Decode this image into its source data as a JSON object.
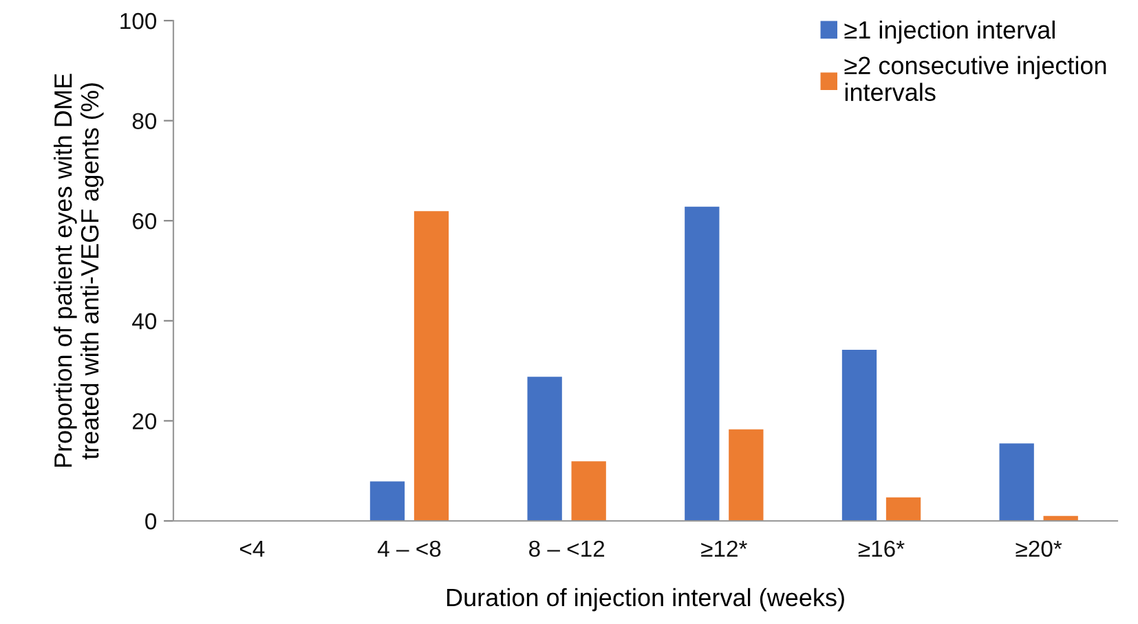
{
  "chart_data": {
    "type": "bar",
    "xlabel": "Duration of injection interval (weeks)",
    "ylabel": "Proportion of patient eyes with DME\ntreated with anti-VEGF agents (%)",
    "categories": [
      "<4",
      "4 – <8",
      "8 – <12",
      "≥12*",
      "≥16*",
      "≥20*"
    ],
    "series": [
      {
        "name": "≥1 injection interval",
        "color": "#4472c4",
        "values": [
          0,
          7.9,
          28.8,
          62.8,
          34.2,
          15.5
        ]
      },
      {
        "name": "≥2 consecutive injection\nintervals",
        "color": "#ed7d31",
        "values": [
          0,
          61.9,
          11.9,
          18.3,
          4.7,
          1.0
        ]
      }
    ],
    "ylim": [
      0,
      100
    ],
    "yticks": [
      0,
      20,
      40,
      60,
      80,
      100
    ],
    "grid": false,
    "legend": "top right"
  }
}
